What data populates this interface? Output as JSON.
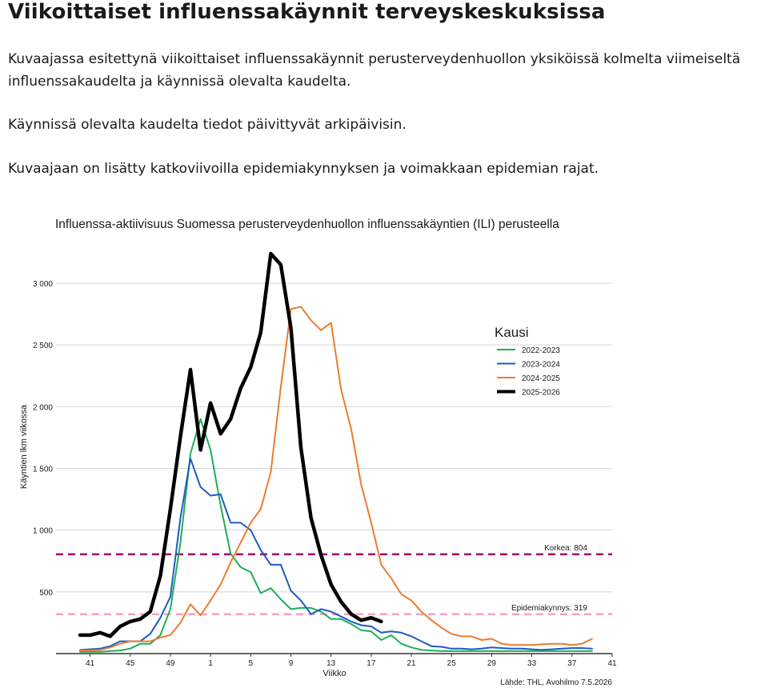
{
  "page": {
    "title": "Viikoittaiset influenssakäynnit terveyskeskuksissa",
    "paragraphs": [
      "Kuvaajassa esitettynä viikoittaiset influenssakäynnit perusterveydenhuollon yksiköissä kolmelta viimeiseltä influenssakaudelta ja käynnissä olevalta kaudelta.",
      "Käynnissä olevalta kaudelta tiedot päivittyvät arkipäivisin.",
      "Kuvaajaan on lisätty katkoviivoilla epidemiakynnyksen ja voimakkaan epidemian rajat."
    ]
  },
  "chart_data": {
    "type": "line",
    "title": "Influenssa-aktiivisuus Suomessa perusterveydenhuollon influenssakäyntien (ILI) perusteella",
    "xlabel": "Viikko",
    "ylabel": "Käyntien lkm viikossa",
    "source": "Lähde: THL, Avohilmo 7.5.2026",
    "x_ticks": [
      "41",
      "45",
      "49",
      "1",
      "5",
      "9",
      "13",
      "17",
      "21",
      "25",
      "29",
      "33",
      "37",
      "41"
    ],
    "y_ticks": [
      "500",
      "1 000",
      "1 500",
      "2 000",
      "2 500",
      "3 000"
    ],
    "y_tick_values": [
      500,
      1000,
      1500,
      2000,
      2500,
      3000
    ],
    "ylim": [
      0,
      3350
    ],
    "grid": true,
    "legend": {
      "title": "Kausi",
      "position": "right"
    },
    "week_order": [
      40,
      41,
      42,
      43,
      44,
      45,
      46,
      47,
      48,
      49,
      50,
      51,
      52,
      1,
      2,
      3,
      4,
      5,
      6,
      7,
      8,
      9,
      10,
      11,
      12,
      13,
      14,
      15,
      16,
      17,
      18,
      19,
      20,
      21,
      22,
      23,
      24,
      25,
      26,
      27,
      28,
      29,
      30,
      31,
      32,
      33,
      34,
      35,
      36,
      37,
      38,
      39,
      40,
      41
    ],
    "thresholds": [
      {
        "label": "Korkea: 804",
        "value": 804,
        "color": "#a3006e"
      },
      {
        "label": "Epidemiakynnys: 319",
        "value": 319,
        "color": "#f5a3c0"
      }
    ],
    "series": [
      {
        "name": "2022-2023",
        "color": "#1fae5a",
        "width": 2,
        "x": [
          40,
          41,
          42,
          43,
          44,
          45,
          46,
          47,
          48,
          49,
          50,
          51,
          52,
          1,
          2,
          3,
          4,
          5,
          6,
          7,
          8,
          9,
          10,
          11,
          12,
          13,
          14,
          15,
          16,
          17,
          18,
          19,
          20,
          21,
          22,
          23,
          24,
          25,
          26,
          27,
          28,
          29,
          30,
          31,
          32,
          33,
          34,
          35,
          36,
          37,
          38,
          39
        ],
        "values": [
          15,
          15,
          15,
          20,
          25,
          40,
          80,
          80,
          150,
          360,
          900,
          1620,
          1900,
          1650,
          1200,
          810,
          700,
          660,
          490,
          530,
          440,
          360,
          370,
          370,
          340,
          280,
          280,
          240,
          190,
          180,
          110,
          150,
          80,
          50,
          30,
          25,
          20,
          20,
          20,
          20,
          20,
          20,
          20,
          20,
          20,
          20,
          20,
          20,
          20,
          20,
          20,
          20
        ]
      },
      {
        "name": "2023-2024",
        "color": "#1e5bbf",
        "width": 2,
        "x": [
          40,
          41,
          42,
          43,
          44,
          45,
          46,
          47,
          48,
          49,
          50,
          51,
          52,
          1,
          2,
          3,
          4,
          5,
          6,
          7,
          8,
          9,
          10,
          11,
          12,
          13,
          14,
          15,
          16,
          17,
          18,
          19,
          20,
          21,
          22,
          23,
          24,
          25,
          26,
          27,
          28,
          29,
          30,
          31,
          32,
          33,
          34,
          35,
          36,
          37,
          38,
          39
        ],
        "values": [
          30,
          35,
          40,
          60,
          100,
          100,
          100,
          160,
          290,
          460,
          1100,
          1580,
          1350,
          1280,
          1290,
          1060,
          1060,
          1000,
          840,
          720,
          720,
          510,
          430,
          320,
          360,
          340,
          300,
          260,
          230,
          220,
          170,
          180,
          170,
          140,
          100,
          60,
          55,
          40,
          40,
          35,
          40,
          50,
          45,
          40,
          40,
          35,
          30,
          35,
          40,
          45,
          45,
          40
        ]
      },
      {
        "name": "2024-2025",
        "color": "#ec7c30",
        "width": 2,
        "x": [
          40,
          41,
          42,
          43,
          44,
          45,
          46,
          47,
          48,
          49,
          50,
          51,
          52,
          1,
          2,
          3,
          4,
          5,
          6,
          7,
          8,
          9,
          10,
          11,
          12,
          13,
          14,
          15,
          16,
          17,
          18,
          19,
          20,
          21,
          22,
          23,
          24,
          25,
          26,
          27,
          28,
          29,
          30,
          31,
          32,
          33,
          34,
          35,
          36,
          37,
          38,
          39
        ],
        "values": [
          25,
          25,
          30,
          50,
          80,
          100,
          100,
          100,
          130,
          150,
          250,
          400,
          310,
          430,
          560,
          740,
          900,
          1060,
          1170,
          1470,
          2160,
          2790,
          2810,
          2700,
          2620,
          2680,
          2140,
          1820,
          1370,
          1060,
          720,
          610,
          480,
          430,
          340,
          270,
          210,
          160,
          140,
          140,
          110,
          120,
          80,
          70,
          70,
          70,
          75,
          80,
          80,
          70,
          80,
          120
        ]
      },
      {
        "name": "2025-2026",
        "color": "#000000",
        "width": 4.5,
        "x": [
          40,
          41,
          42,
          43,
          44,
          45,
          46,
          47,
          48,
          49,
          50,
          51,
          52,
          1,
          2,
          3,
          4,
          5,
          6,
          7,
          8,
          9,
          10,
          11,
          12,
          13,
          14,
          15,
          16,
          17,
          18
        ],
        "values": [
          150,
          150,
          170,
          140,
          220,
          260,
          280,
          340,
          630,
          1170,
          1760,
          2300,
          1650,
          2030,
          1780,
          1900,
          2150,
          2320,
          2600,
          3240,
          3150,
          2640,
          1670,
          1100,
          800,
          560,
          420,
          320,
          270,
          290,
          260
        ]
      }
    ]
  }
}
